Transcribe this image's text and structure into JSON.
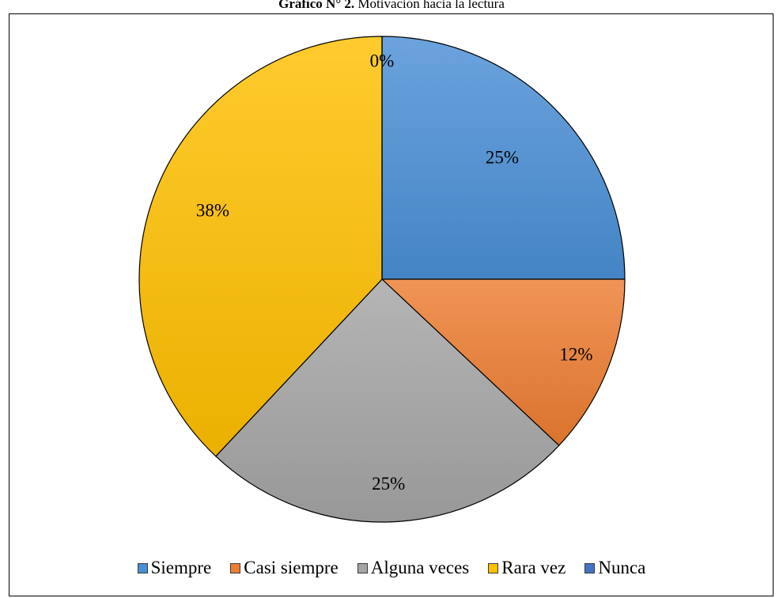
{
  "caption": {
    "prefix": "Gráfico N° 2.",
    "text": " Motivación hacia la lectura"
  },
  "chart_data": {
    "type": "pie",
    "categories": [
      "Siempre",
      "Casi siempre",
      "Alguna veces",
      "Rara vez",
      "Nunca"
    ],
    "values": [
      25,
      12,
      25,
      38,
      0
    ],
    "labels": [
      "25%",
      "12%",
      "25%",
      "38%",
      "0%"
    ],
    "colors": [
      "#4a8fd6",
      "#ed7d31",
      "#a5a5a5",
      "#ffc000",
      "#4472c4"
    ],
    "legend_position": "bottom",
    "start_angle": "12 o'clock",
    "direction": "clockwise"
  }
}
